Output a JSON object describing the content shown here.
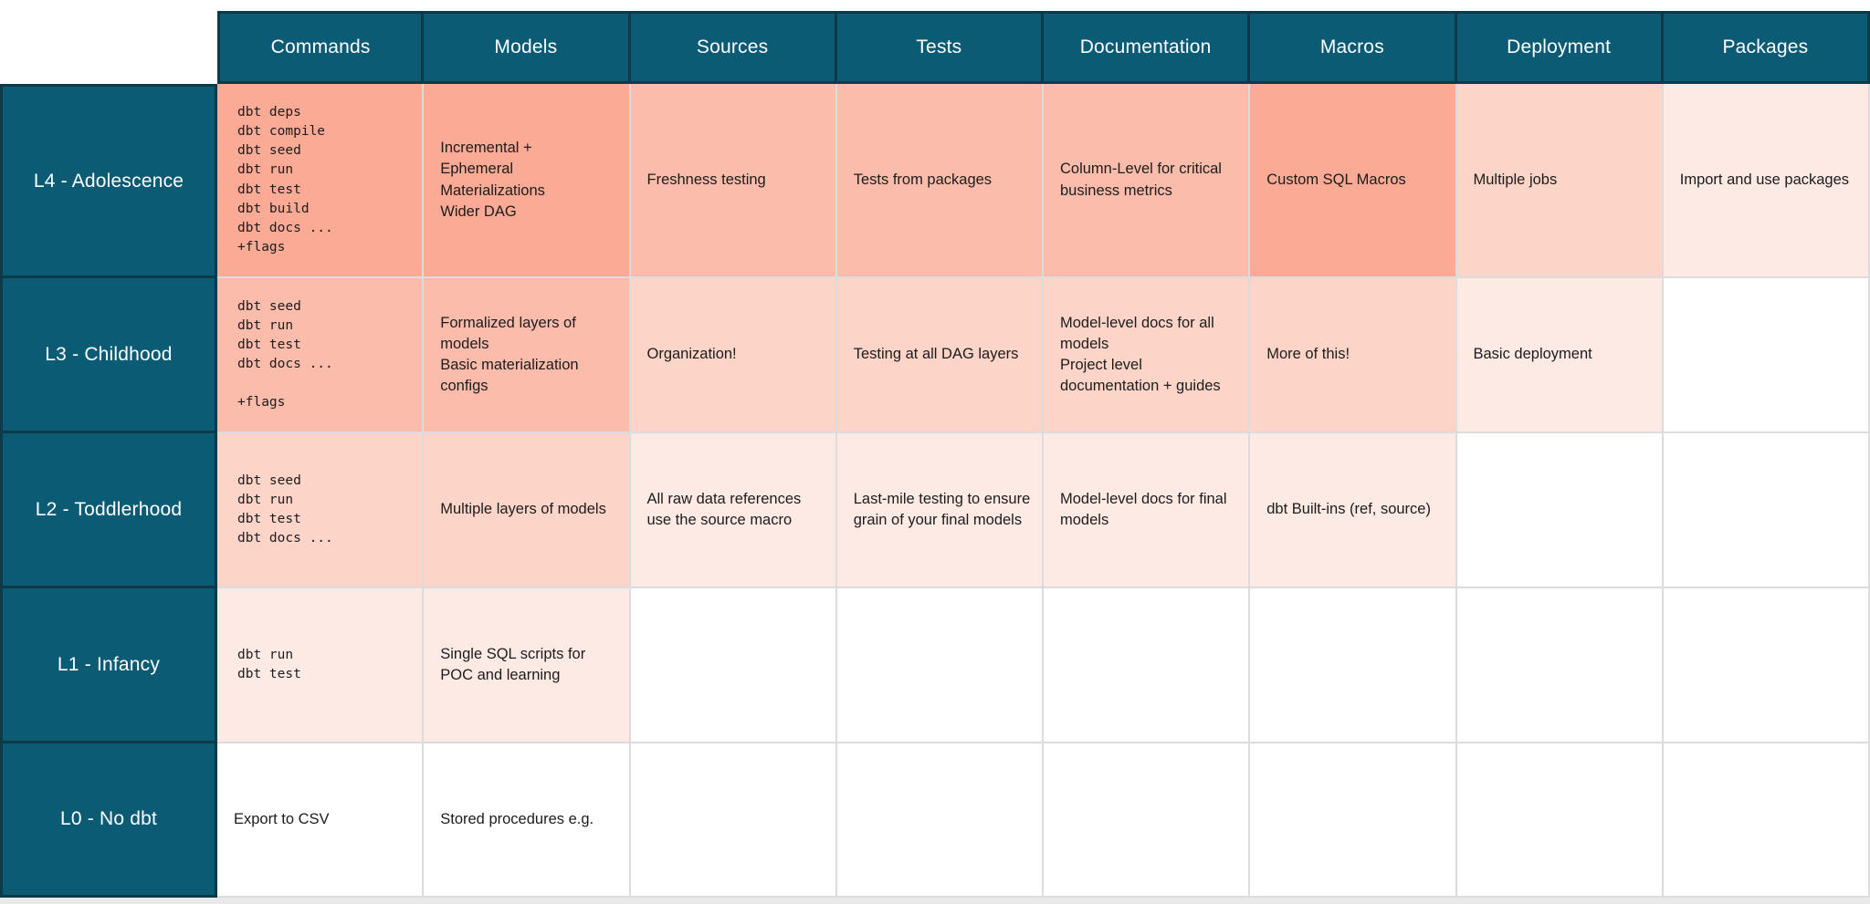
{
  "colors": {
    "header_teal": "#0c5b75",
    "dark_border": "#0d3a49",
    "grid_line": "#dcdcdc",
    "body_text": "#1c1c1c",
    "header_text": "#ffffff",
    "bottom_strip": "#e9e9e9",
    "levels": {
      "0": "#ffffff",
      "1": "#feeae5",
      "2": "#fdd4c8",
      "3": "#fcbcab",
      "4": "#fbaa95"
    }
  },
  "table": {
    "columns": [
      "Commands",
      "Models",
      "Sources",
      "Tests",
      "Documentation",
      "Macros",
      "Deployment",
      "Packages"
    ],
    "rows": [
      {
        "label": "L4 - Adolescence",
        "cells": [
          {
            "text": "dbt deps\ndbt compile\ndbt seed\ndbt run\ndbt test\ndbt build\ndbt docs ...\n+flags",
            "mono": true,
            "level": 4
          },
          {
            "text": "Incremental +\nEphemeral\nMaterializations\nWider DAG",
            "level": 4
          },
          {
            "text": "Freshness testing",
            "level": 3
          },
          {
            "text": "Tests from packages",
            "level": 3
          },
          {
            "text": "Column-Level for critical business metrics",
            "level": 3
          },
          {
            "text": "Custom SQL Macros",
            "level": 4
          },
          {
            "text": "Multiple jobs",
            "level": 2
          },
          {
            "text": "Import and use packages",
            "level": 1
          }
        ]
      },
      {
        "label": "L3 - Childhood",
        "cells": [
          {
            "text": "dbt seed\ndbt run\ndbt test\ndbt docs ...\n\n+flags",
            "mono": true,
            "level": 3
          },
          {
            "text": "Formalized layers of models\nBasic materialization configs",
            "level": 3
          },
          {
            "text": "Organization!",
            "level": 2
          },
          {
            "text": "Testing at all DAG layers",
            "level": 2
          },
          {
            "text": "Model-level docs for all models\nProject level documentation + guides",
            "level": 2
          },
          {
            "text": "More of this!",
            "level": 2
          },
          {
            "text": "Basic deployment",
            "level": 1
          },
          {
            "text": "",
            "level": 0
          }
        ]
      },
      {
        "label": "L2 - Toddlerhood",
        "cells": [
          {
            "text": "dbt seed\ndbt run\ndbt test\ndbt docs ...",
            "mono": true,
            "level": 2
          },
          {
            "text": "Multiple layers of models",
            "level": 2
          },
          {
            "text": "All raw data references use the source macro",
            "level": 1
          },
          {
            "text": "Last-mile testing to ensure grain of your final models",
            "level": 1
          },
          {
            "text": "Model-level docs for final models",
            "level": 1
          },
          {
            "text": "dbt Built-ins (ref, source)",
            "level": 1
          },
          {
            "text": "",
            "level": 0
          },
          {
            "text": "",
            "level": 0
          }
        ]
      },
      {
        "label": "L1 - Infancy",
        "cells": [
          {
            "text": "dbt run\ndbt test",
            "mono": true,
            "level": 1
          },
          {
            "text": "Single SQL scripts for POC and learning",
            "level": 1
          },
          {
            "text": "",
            "level": 0
          },
          {
            "text": "",
            "level": 0
          },
          {
            "text": "",
            "level": 0
          },
          {
            "text": "",
            "level": 0
          },
          {
            "text": "",
            "level": 0
          },
          {
            "text": "",
            "level": 0
          }
        ]
      },
      {
        "label": "L0 - No dbt",
        "cells": [
          {
            "text": "Export to CSV",
            "level": 0
          },
          {
            "text": "Stored procedures e.g.",
            "level": 0
          },
          {
            "text": "",
            "level": 0
          },
          {
            "text": "",
            "level": 0
          },
          {
            "text": "",
            "level": 0
          },
          {
            "text": "",
            "level": 0
          },
          {
            "text": "",
            "level": 0
          },
          {
            "text": "",
            "level": 0
          }
        ]
      }
    ]
  }
}
